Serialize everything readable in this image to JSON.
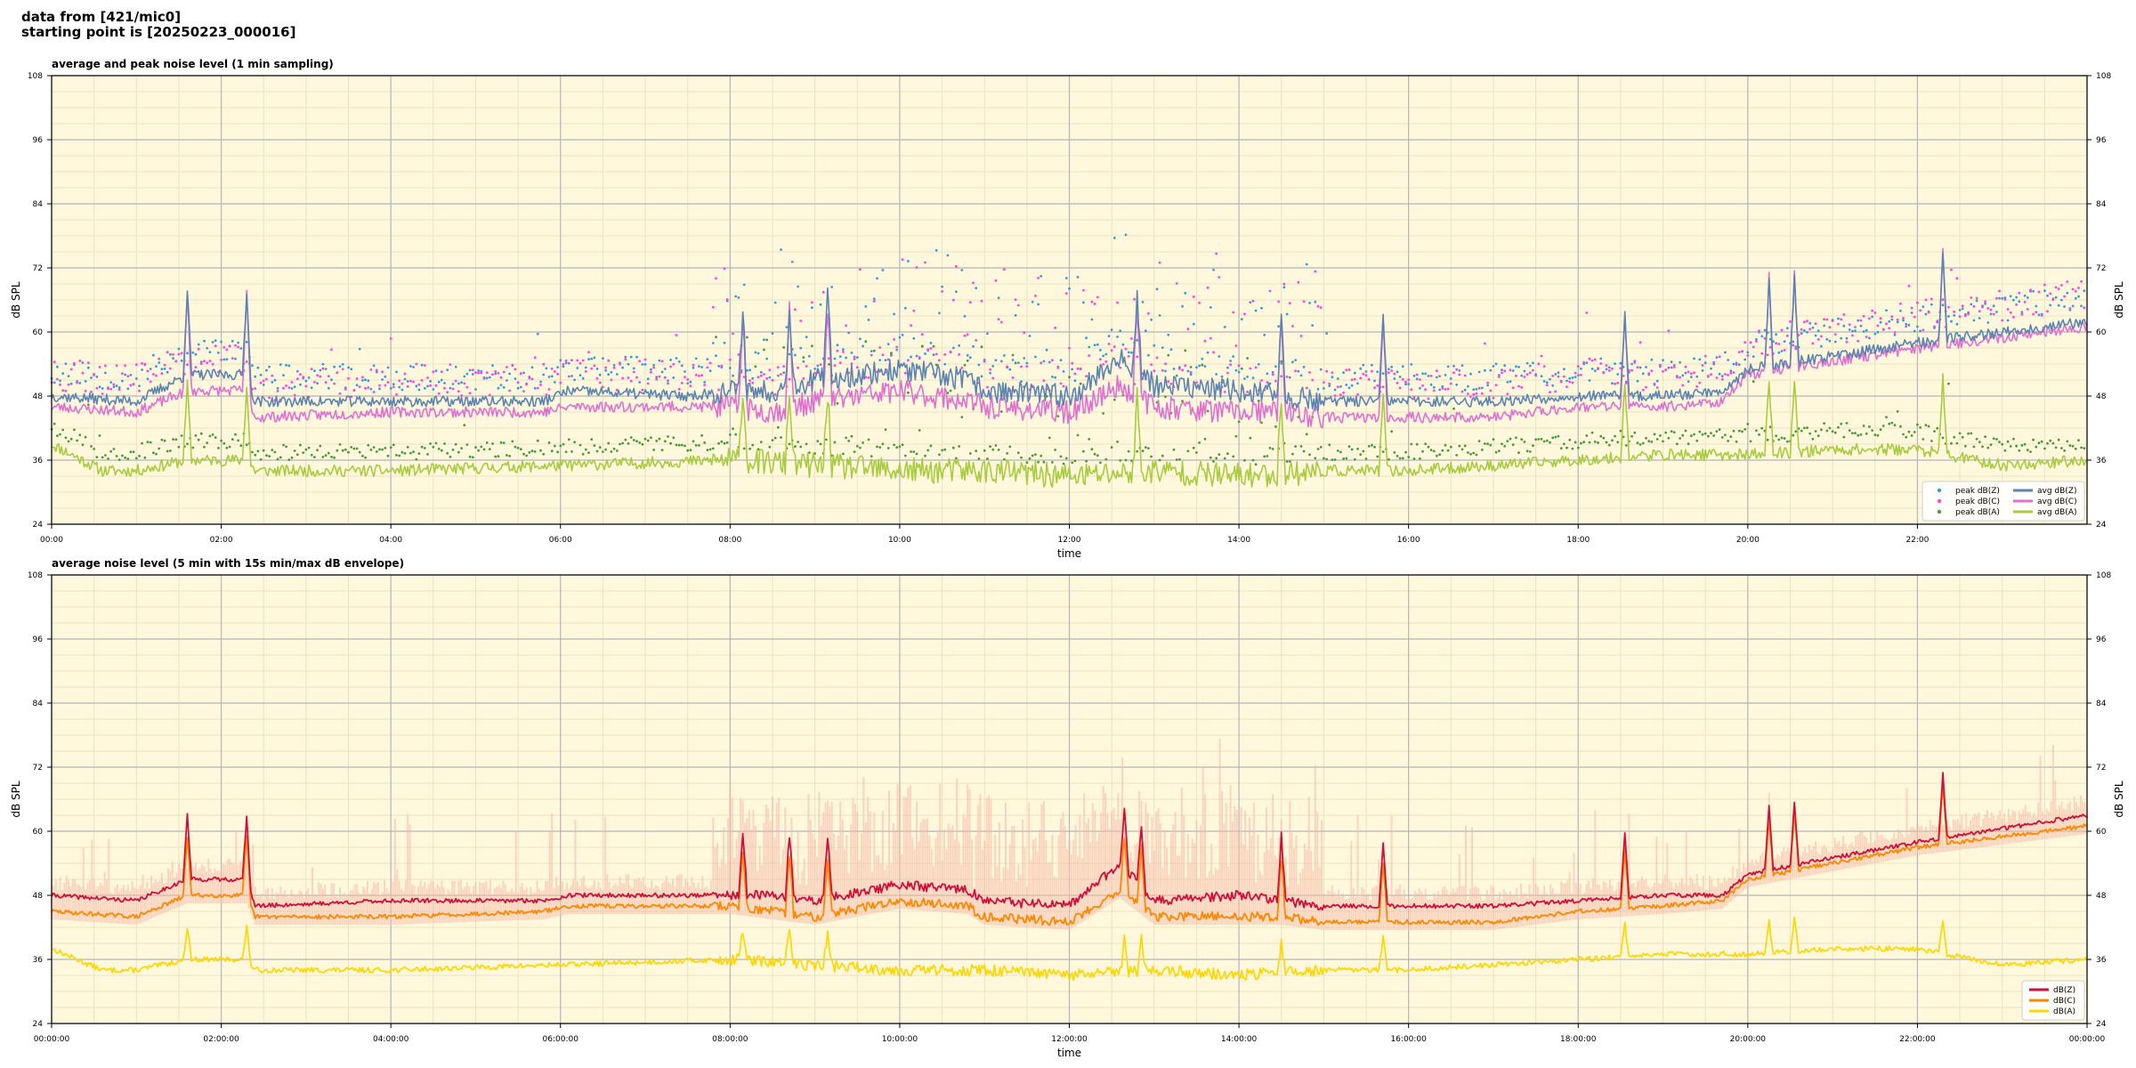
{
  "header": {
    "line1": "data from [421/mic0]",
    "line2": "starting point is [20250223_000016]"
  },
  "colors": {
    "plot_bg": "#fff8dc",
    "grid_major": "#b5b5b5",
    "grid_minor": "#ece2c2",
    "peak_z": "#3a9ad9",
    "peak_c": "#ff44dd",
    "peak_a": "#4a9a3a",
    "avg_z": "#5b84b1",
    "avg_c": "#e070d0",
    "avg_a": "#a8cc40",
    "env_fill": "#f5b8a8",
    "db_z": "#d0103a",
    "db_c": "#ff8800",
    "db_a": "#ffd700"
  },
  "chart_data": [
    {
      "type": "line",
      "title": "average and peak noise level (1 min sampling)",
      "xlabel": "time",
      "ylabel": "dB SPL",
      "ylim": [
        24,
        108
      ],
      "yticks": [
        24,
        36,
        48,
        60,
        72,
        84,
        96,
        108
      ],
      "xlim_hours": [
        0,
        24
      ],
      "xticks": [
        "00:00",
        "02:00",
        "04:00",
        "06:00",
        "08:00",
        "10:00",
        "12:00",
        "14:00",
        "16:00",
        "18:00",
        "20:00",
        "22:00"
      ],
      "grid": true,
      "legend_position": "bottom-right",
      "legend": [
        "peak dB(Z)",
        "peak dB(C)",
        "peak dB(A)",
        "avg dB(Z)",
        "avg dB(C)",
        "avg dB(A)"
      ],
      "series": [
        {
          "name": "avg dB(Z)",
          "x": [
            0,
            1,
            1.6,
            2.3,
            2.4,
            4,
            5.8,
            6.1,
            7.5,
            8,
            8.5,
            9,
            10,
            10.8,
            11,
            12,
            12.6,
            13,
            14,
            14.5,
            15,
            16,
            17,
            18,
            19,
            19.7,
            20,
            22,
            24
          ],
          "values": [
            48,
            47,
            52,
            52,
            47,
            47,
            47,
            49,
            48,
            49,
            49,
            51,
            53,
            51,
            49,
            48,
            55,
            50,
            49,
            48,
            47,
            47,
            47,
            48,
            48,
            49,
            53,
            58,
            62
          ]
        },
        {
          "name": "avg dB(C)",
          "x": [
            0,
            1,
            1.6,
            2.3,
            2.4,
            4,
            5.8,
            6.1,
            7.5,
            8,
            8.5,
            9,
            10,
            10.8,
            11,
            12,
            12.6,
            13,
            14,
            14.5,
            15,
            16,
            17,
            18,
            19,
            19.7,
            20,
            22,
            24
          ],
          "values": [
            46,
            45,
            49,
            49,
            44,
            45,
            45,
            46,
            46,
            46,
            45,
            47,
            49,
            47,
            46,
            45,
            50,
            46,
            45,
            45,
            44,
            44,
            44,
            46,
            46,
            47,
            52,
            57,
            61
          ]
        },
        {
          "name": "avg dB(A)",
          "x": [
            0,
            0.6,
            1,
            1.6,
            2.3,
            2.4,
            4,
            6,
            8,
            9,
            10,
            11,
            12,
            13,
            14,
            15,
            16,
            17,
            18,
            19,
            20,
            21,
            22,
            23,
            24
          ],
          "values": [
            39,
            34,
            34,
            36,
            36,
            34,
            34,
            35,
            36,
            35,
            34,
            34,
            33,
            34,
            33,
            34,
            34,
            35,
            36,
            37,
            37,
            38,
            38,
            35,
            36
          ]
        },
        {
          "name": "peak dB(Z)",
          "range": [
            45,
            80
          ]
        },
        {
          "name": "peak dB(C)",
          "range": [
            43,
            82
          ]
        },
        {
          "name": "peak dB(A)",
          "range": [
            32,
            48
          ]
        }
      ],
      "spikes": [
        1.6,
        2.3,
        8.15,
        8.7,
        9.15,
        12.8,
        14.5,
        15.7,
        18.55,
        20.25,
        20.55,
        22.3
      ]
    },
    {
      "type": "area",
      "title": "average noise level (5 min with 15s min/max dB envelope)",
      "xlabel": "time",
      "ylabel": "dB SPL",
      "ylim": [
        24,
        108
      ],
      "yticks": [
        24,
        36,
        48,
        60,
        72,
        84,
        96,
        108
      ],
      "xlim_hours": [
        0,
        24
      ],
      "xticks": [
        "00:00:00",
        "02:00:00",
        "04:00:00",
        "06:00:00",
        "08:00:00",
        "10:00:00",
        "12:00:00",
        "14:00:00",
        "16:00:00",
        "18:00:00",
        "20:00:00",
        "22:00:00",
        "00:00:00"
      ],
      "grid": true,
      "legend_position": "bottom-right",
      "legend": [
        "dB(Z)",
        "dB(C)",
        "dB(A)"
      ],
      "series": [
        {
          "name": "dB(Z)",
          "x": [
            0,
            1,
            1.6,
            2.3,
            2.4,
            4,
            5.8,
            6.1,
            7.5,
            8,
            8.5,
            9,
            10,
            10.8,
            11,
            12,
            12.6,
            13,
            14,
            14.5,
            15,
            16,
            17,
            18,
            19,
            19.7,
            20,
            22,
            24
          ],
          "values": [
            48,
            47,
            51,
            51,
            46,
            47,
            47,
            48,
            48,
            48,
            48,
            47,
            50,
            49,
            47,
            46,
            54,
            47,
            48,
            47,
            46,
            46,
            46,
            47,
            48,
            48,
            52,
            58,
            63
          ]
        },
        {
          "name": "dB(C)",
          "x": [
            0,
            1,
            1.6,
            2.3,
            2.4,
            4,
            5.8,
            6.1,
            7.5,
            8,
            8.5,
            9,
            10,
            10.8,
            11,
            12,
            12.6,
            13,
            14,
            14.5,
            15,
            16,
            17,
            18,
            19,
            19.7,
            20,
            22,
            24
          ],
          "values": [
            45,
            44,
            48,
            48,
            44,
            44,
            45,
            46,
            46,
            46,
            45,
            44,
            47,
            46,
            44,
            43,
            49,
            44,
            44,
            44,
            43,
            43,
            43,
            45,
            46,
            47,
            51,
            57,
            61
          ]
        },
        {
          "name": "dB(A)",
          "x": [
            0,
            0.6,
            1,
            1.6,
            2.3,
            2.4,
            4,
            6,
            8,
            9,
            10,
            11,
            12,
            13,
            14,
            15,
            16,
            17,
            18,
            19,
            20,
            21,
            22,
            23,
            24
          ],
          "values": [
            38,
            34,
            34,
            36,
            36,
            34,
            34,
            35,
            36,
            35,
            34,
            34,
            33,
            34,
            33,
            34,
            34,
            35,
            36,
            37,
            37,
            38,
            38,
            35,
            36
          ]
        }
      ],
      "spikes": [
        1.6,
        2.3,
        8.15,
        8.7,
        9.15,
        12.65,
        12.85,
        14.5,
        15.7,
        18.55,
        20.25,
        20.55,
        22.3
      ]
    }
  ]
}
